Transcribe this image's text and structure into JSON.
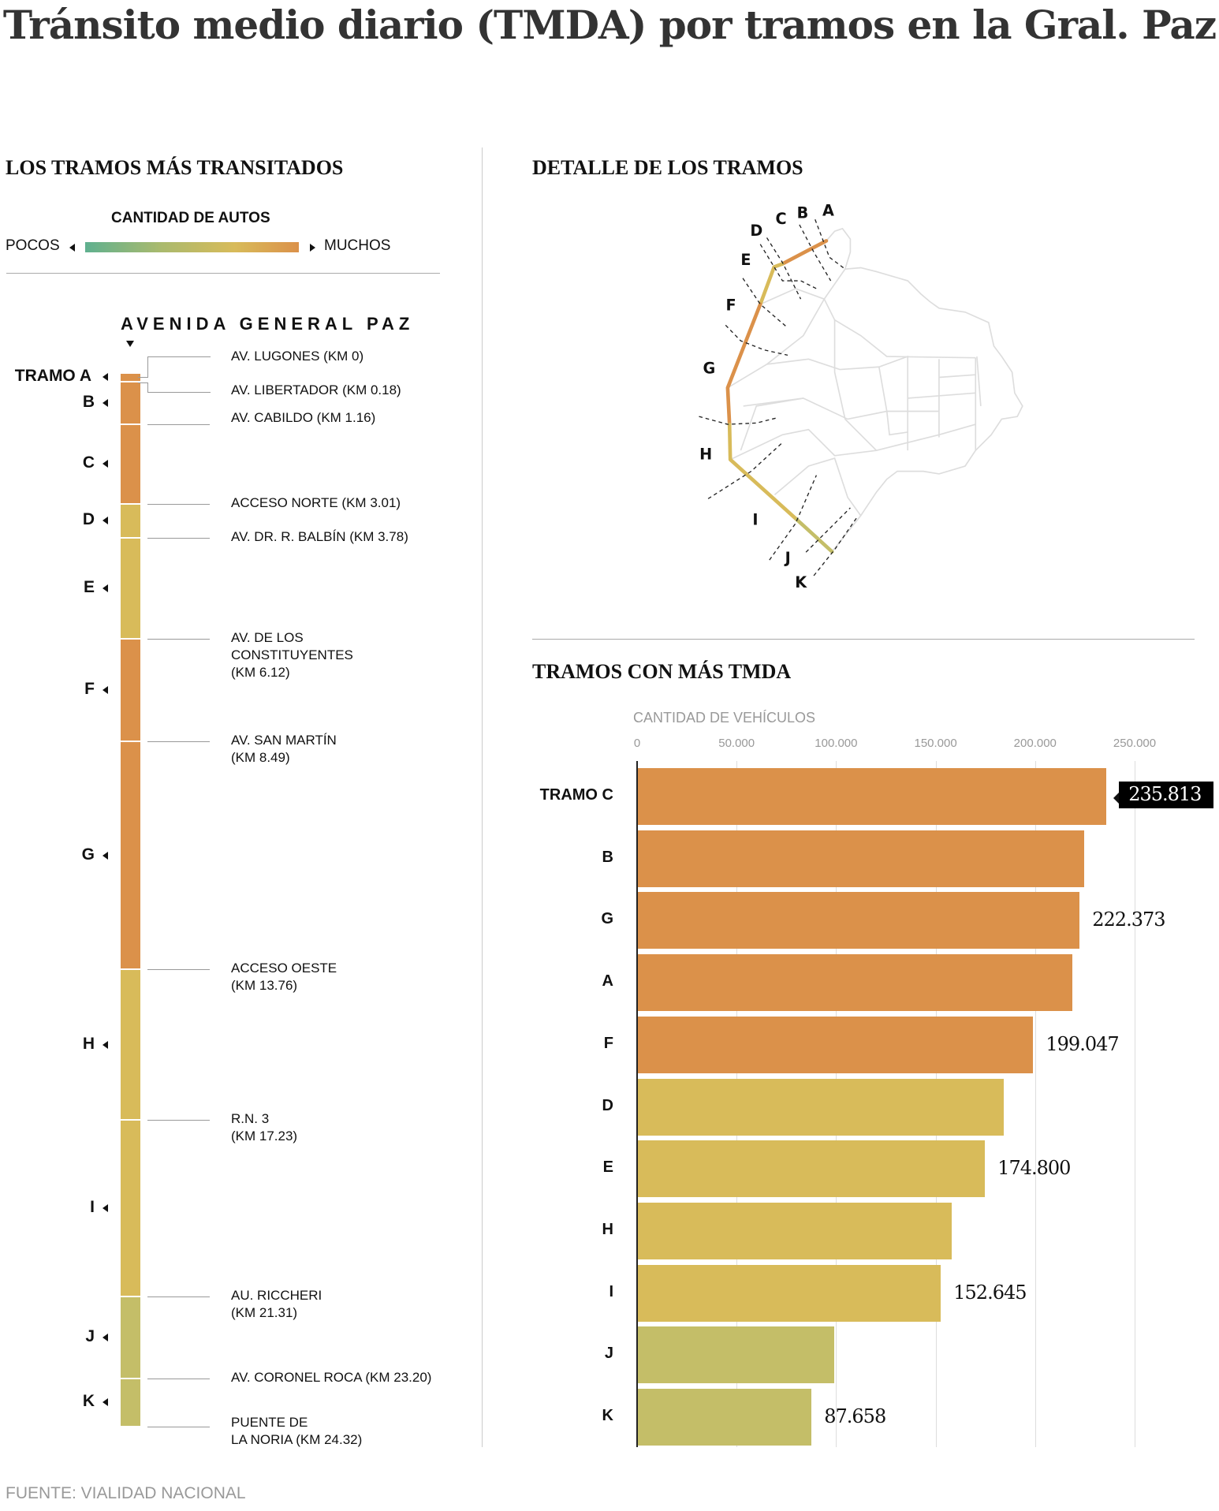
{
  "title": "Tránsito medio diario (TMDA) por tramos en la Gral. Paz",
  "left": {
    "heading": "LOS TRAMOS MÁS TRANSITADOS",
    "legend": {
      "title": "CANTIDAD DE AUTOS",
      "low": "POCOS",
      "high": "MUCHOS"
    },
    "avenue": "AVENIDA GENERAL PAZ",
    "first_prefix": "TRAMO ",
    "tramos": [
      {
        "id": "A",
        "from_km": 0,
        "to_km": 0.18,
        "level": "high"
      },
      {
        "id": "B",
        "from_km": 0.18,
        "to_km": 1.16,
        "level": "high"
      },
      {
        "id": "C",
        "from_km": 1.16,
        "to_km": 3.01,
        "level": "high"
      },
      {
        "id": "D",
        "from_km": 3.01,
        "to_km": 3.78,
        "level": "mid"
      },
      {
        "id": "E",
        "from_km": 3.78,
        "to_km": 6.12,
        "level": "mid"
      },
      {
        "id": "F",
        "from_km": 6.12,
        "to_km": 8.49,
        "level": "high"
      },
      {
        "id": "G",
        "from_km": 8.49,
        "to_km": 13.76,
        "level": "high"
      },
      {
        "id": "H",
        "from_km": 13.76,
        "to_km": 17.23,
        "level": "mid"
      },
      {
        "id": "I",
        "from_km": 17.23,
        "to_km": 21.31,
        "level": "mid"
      },
      {
        "id": "J",
        "from_km": 21.31,
        "to_km": 23.2,
        "level": "low"
      },
      {
        "id": "K",
        "from_km": 23.2,
        "to_km": 24.32,
        "level": "low"
      }
    ],
    "stops": [
      {
        "km": 0,
        "label": "AV. LUGONES (KM 0)"
      },
      {
        "km": 0.18,
        "label": "AV. LIBERTADOR (KM 0.18)"
      },
      {
        "km": 1.16,
        "label": "AV. CABILDO (KM 1.16)"
      },
      {
        "km": 3.01,
        "label": "ACCESO NORTE (KM 3.01)"
      },
      {
        "km": 3.78,
        "label": "AV. DR. R. BALBÍN (KM 3.78)"
      },
      {
        "km": 6.12,
        "label": "AV. DE LOS\nCONSTITUYENTES\n(KM 6.12)"
      },
      {
        "km": 8.49,
        "label": "AV. SAN MARTÍN\n(KM 8.49)"
      },
      {
        "km": 13.76,
        "label": "ACCESO OESTE\n(KM 13.76)"
      },
      {
        "km": 17.23,
        "label": "R.N. 3\n(KM 17.23)"
      },
      {
        "km": 21.31,
        "label": "AU. RICCHERI\n(KM 21.31)"
      },
      {
        "km": 23.2,
        "label": "AV. CORONEL ROCA (KM 23.20)"
      },
      {
        "km": 24.32,
        "label": "PUENTE DE\nLA NORIA (KM 24.32)"
      }
    ]
  },
  "right": {
    "map_heading": "DETALLE DE LOS TRAMOS",
    "map_labels": [
      "A",
      "B",
      "C",
      "D",
      "E",
      "F",
      "G",
      "H",
      "I",
      "J",
      "K"
    ],
    "chart_heading": "TRAMOS CON MÁS TMDA"
  },
  "colors": {
    "high": "#DB914A",
    "mid": "#D8BB5A",
    "low": "#C4BE68",
    "gradient_start": "#5FB08F"
  },
  "chart_data": {
    "type": "bar",
    "orientation": "horizontal",
    "xlabel": "CANTIDAD DE VEHÍCULOS",
    "xlim": [
      0,
      250000
    ],
    "ticks": [
      0,
      50000,
      100000,
      150000,
      200000,
      250000
    ],
    "tick_labels": [
      "0",
      "50.000",
      "100.000",
      "150.000",
      "200.000",
      "250.000"
    ],
    "grid": true,
    "categories": [
      "TRAMO C",
      "B",
      "G",
      "A",
      "F",
      "D",
      "E",
      "H",
      "I",
      "J",
      "K"
    ],
    "values": [
      235813,
      224600,
      222373,
      218700,
      199047,
      184200,
      174800,
      158000,
      152645,
      99000,
      87658
    ],
    "levels": [
      "high",
      "high",
      "high",
      "high",
      "high",
      "mid",
      "mid",
      "mid",
      "mid",
      "low",
      "low"
    ],
    "data_labels": [
      "235.813",
      "",
      "222.373",
      "",
      "199.047",
      "",
      "174.800",
      "",
      "152.645",
      "",
      "87.658"
    ],
    "highlight": "TRAMO C"
  },
  "source": "FUENTE: VIALIDAD NACIONAL"
}
